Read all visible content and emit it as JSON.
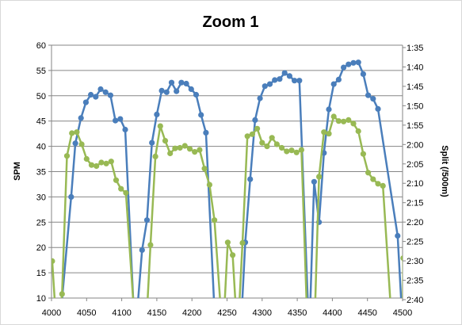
{
  "chart_data": {
    "type": "line",
    "title": "Zoom 1",
    "xlabel": "",
    "ylabel": "SPM",
    "y2label": "Split (/500m)",
    "xlim": [
      4000,
      4500
    ],
    "ylim": [
      10,
      60
    ],
    "y2_reversed": true,
    "y2lim_seconds": [
      95,
      165
    ],
    "x_ticks": [
      "4000",
      "4050",
      "4100",
      "4150",
      "4200",
      "4250",
      "4300",
      "4350",
      "4400",
      "4450",
      "4500"
    ],
    "y_ticks": [
      "10",
      "15",
      "20",
      "25",
      "30",
      "35",
      "40",
      "45",
      "50",
      "55",
      "60"
    ],
    "y2_ticks": [
      "1:35",
      "1:40",
      "1:45",
      "1:50",
      "1:55",
      "2:00",
      "2:05",
      "2:10",
      "2:15",
      "2:20",
      "2:25",
      "2:30",
      "2:35",
      "2:40"
    ],
    "grid": "horizontal",
    "series": [
      {
        "axis": "left",
        "color": "#4a7ebb",
        "points": [
          [
            4010,
            2
          ],
          [
            4028,
            30
          ],
          [
            4034,
            40.6
          ],
          [
            4042,
            45.6
          ],
          [
            4049,
            48.7
          ],
          [
            4056,
            50.2
          ],
          [
            4063,
            49.8
          ],
          [
            4070,
            51.3
          ],
          [
            4077,
            50.7
          ],
          [
            4084,
            50.1
          ],
          [
            4091,
            45.1
          ],
          [
            4098,
            45.4
          ],
          [
            4105,
            43.3
          ],
          [
            4119,
            2
          ],
          [
            4129,
            19.5
          ],
          [
            4136,
            25.4
          ],
          [
            4143,
            40.7
          ],
          [
            4150,
            46.3
          ],
          [
            4157,
            51.0
          ],
          [
            4164,
            50.7
          ],
          [
            4171,
            52.6
          ],
          [
            4178,
            50.9
          ],
          [
            4185,
            52.6
          ],
          [
            4192,
            52.4
          ],
          [
            4199,
            51.3
          ],
          [
            4206,
            50.2
          ],
          [
            4213,
            46.2
          ],
          [
            4220,
            42.7
          ],
          [
            4234,
            2
          ],
          [
            4269,
            2
          ],
          [
            4276,
            21.0
          ],
          [
            4283,
            33.5
          ],
          [
            4290,
            45.2
          ],
          [
            4297,
            49.5
          ],
          [
            4304,
            51.9
          ],
          [
            4311,
            52.3
          ],
          [
            4318,
            53.1
          ],
          [
            4325,
            53.3
          ],
          [
            4332,
            54.5
          ],
          [
            4339,
            53.9
          ],
          [
            4346,
            53.0
          ],
          [
            4353,
            53.0
          ],
          [
            4367,
            2
          ],
          [
            4374,
            33.0
          ],
          [
            4381,
            25.0
          ],
          [
            4388,
            38.7
          ],
          [
            4395,
            47.3
          ],
          [
            4402,
            52.3
          ],
          [
            4409,
            53.2
          ],
          [
            4416,
            55.6
          ],
          [
            4423,
            56.2
          ],
          [
            4430,
            56.5
          ],
          [
            4437,
            56.6
          ],
          [
            4444,
            54.3
          ],
          [
            4451,
            50.1
          ],
          [
            4458,
            49.4
          ],
          [
            4465,
            47.4
          ],
          [
            4493,
            22.3
          ],
          [
            4501,
            2
          ]
        ]
      },
      {
        "axis": "right",
        "color": "#98b954",
        "points": [
          [
            4001,
            17.3
          ],
          [
            4008,
            2
          ],
          [
            4015,
            10.8
          ],
          [
            4022,
            38.1
          ],
          [
            4029,
            42.6
          ],
          [
            4036,
            42.8
          ],
          [
            4043,
            40.4
          ],
          [
            4050,
            37.5
          ],
          [
            4057,
            36.3
          ],
          [
            4064,
            36.1
          ],
          [
            4071,
            36.8
          ],
          [
            4078,
            36.6
          ],
          [
            4085,
            37.0
          ],
          [
            4092,
            33.3
          ],
          [
            4099,
            31.6
          ],
          [
            4106,
            30.8
          ],
          [
            4120,
            2
          ],
          [
            4134,
            2
          ],
          [
            4141,
            20.5
          ],
          [
            4148,
            38.0
          ],
          [
            4155,
            44.0
          ],
          [
            4162,
            41.1
          ],
          [
            4169,
            38.6
          ],
          [
            4176,
            39.6
          ],
          [
            4183,
            39.7
          ],
          [
            4190,
            40.1
          ],
          [
            4197,
            39.5
          ],
          [
            4204,
            38.9
          ],
          [
            4211,
            39.3
          ],
          [
            4218,
            35.6
          ],
          [
            4225,
            32.4
          ],
          [
            4232,
            25.4
          ],
          [
            4244,
            2
          ],
          [
            4251,
            21.0
          ],
          [
            4258,
            18.5
          ],
          [
            4265,
            2
          ],
          [
            4272,
            20.9
          ],
          [
            4279,
            42.0
          ],
          [
            4286,
            42.4
          ],
          [
            4293,
            43.5
          ],
          [
            4300,
            40.7
          ],
          [
            4307,
            40.0
          ],
          [
            4314,
            41.7
          ],
          [
            4321,
            40.4
          ],
          [
            4328,
            39.7
          ],
          [
            4335,
            39.0
          ],
          [
            4342,
            39.2
          ],
          [
            4349,
            38.8
          ],
          [
            4356,
            39.3
          ],
          [
            4365,
            2
          ],
          [
            4374,
            2
          ],
          [
            4381,
            34.0
          ],
          [
            4388,
            42.8
          ],
          [
            4395,
            42.5
          ],
          [
            4402,
            45.9
          ],
          [
            4409,
            45.0
          ],
          [
            4416,
            44.9
          ],
          [
            4423,
            45.2
          ],
          [
            4430,
            44.5
          ],
          [
            4437,
            43.0
          ],
          [
            4444,
            38.5
          ],
          [
            4451,
            34.8
          ],
          [
            4458,
            33.5
          ],
          [
            4465,
            32.6
          ],
          [
            4472,
            32.2
          ],
          [
            4486,
            2
          ],
          [
            4500,
            2
          ],
          [
            4501,
            17.9
          ]
        ]
      }
    ]
  }
}
